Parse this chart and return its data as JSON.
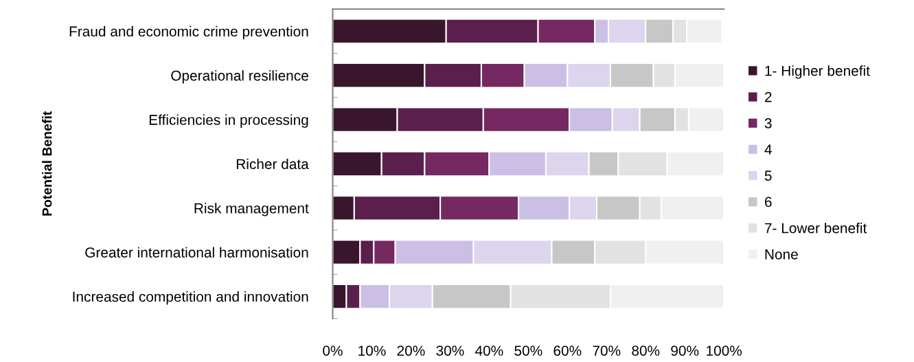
{
  "chart_data": {
    "type": "bar",
    "orientation": "horizontal",
    "stacked": true,
    "ylabel": "Potential Benefit",
    "categories": [
      "Fraud and economic crime prevention",
      "Operational resilience",
      "Efficiencies in processing",
      "Richer data",
      "Risk management",
      "Greater international harmonisation",
      "Increased competition and innovation"
    ],
    "series": [
      {
        "name": "1- Higher benefit",
        "color": "#3a152e",
        "values": [
          29,
          23.5,
          16.5,
          12.5,
          5.5,
          7,
          3.5
        ]
      },
      {
        "name": "2",
        "color": "#5a1f4d",
        "values": [
          23.5,
          14.5,
          22,
          11,
          22,
          3.5,
          3.5
        ]
      },
      {
        "name": "3",
        "color": "#752862",
        "values": [
          14.5,
          11,
          22,
          16.5,
          20,
          5.5,
          null
        ]
      },
      {
        "name": "4",
        "color": "#cbbfe6",
        "values": [
          3.5,
          11,
          11,
          14.5,
          13,
          20,
          7.5
        ]
      },
      {
        "name": "5",
        "color": "#ddd4ee",
        "values": [
          9.5,
          11,
          7,
          11,
          7,
          20,
          11
        ]
      },
      {
        "name": "6",
        "color": "#c7c7c7",
        "values": [
          7,
          11,
          9,
          7.5,
          11,
          11,
          20
        ]
      },
      {
        "name": "7- Lower benefit",
        "color": "#e2e2e2",
        "values": [
          3.5,
          5.5,
          3.5,
          12.5,
          5.5,
          13,
          25.5
        ]
      },
      {
        "name": "None",
        "color": "#f0f0f0",
        "values": [
          9,
          12.5,
          9,
          14.5,
          16,
          20,
          29
        ]
      }
    ],
    "xlim": [
      0,
      100
    ],
    "xticks": [
      {
        "value": 0,
        "label": "0%"
      },
      {
        "value": 10,
        "label": "10%"
      },
      {
        "value": 20,
        "label": "20%"
      },
      {
        "value": 30,
        "label": "30%"
      },
      {
        "value": 40,
        "label": "40%"
      },
      {
        "value": 50,
        "label": "50%"
      },
      {
        "value": 60,
        "label": "60%"
      },
      {
        "value": 70,
        "label": "70%"
      },
      {
        "value": 80,
        "label": "80%"
      },
      {
        "value": 90,
        "label": "90%"
      },
      {
        "value": 100,
        "label": "100%"
      }
    ],
    "grid": false,
    "legend": "right"
  }
}
